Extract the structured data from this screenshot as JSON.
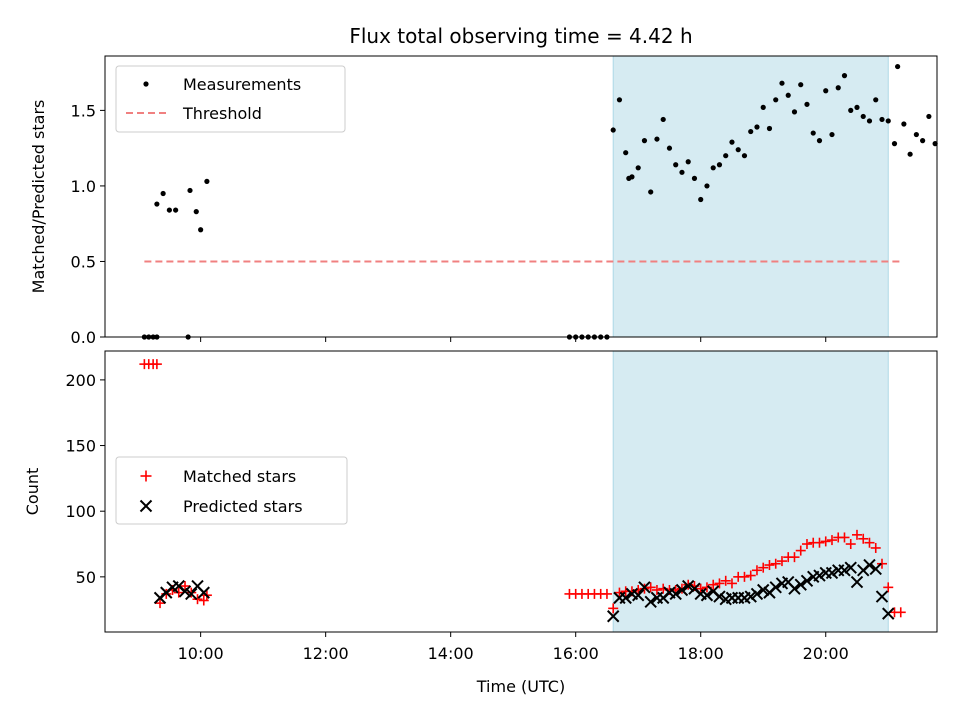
{
  "title": "Flux total observing time = 4.42 h",
  "colors": {
    "measurement": "#000000",
    "threshold": "#f08080",
    "matched": "#ff0000",
    "predicted": "#000000",
    "span": "#add8e6"
  },
  "chart_data": [
    {
      "type": "scatter",
      "panel": "top",
      "ylabel": "Matched/Predicted stars",
      "ylim": [
        0,
        1.86
      ],
      "yticks": [
        0.0,
        0.5,
        1.0,
        1.5
      ],
      "ytick_labels": [
        "0.0",
        "0.5",
        "1.0",
        "1.5"
      ],
      "xlim": [
        8.47,
        21.78
      ],
      "shaded_span": [
        16.6,
        21.0
      ],
      "legend": {
        "placement": "upper-left",
        "entries": [
          "Measurements",
          "Threshold"
        ]
      },
      "threshold": {
        "name": "Threshold",
        "x": [
          9.1,
          21.2
        ],
        "y": [
          0.5,
          0.5
        ]
      },
      "series": [
        {
          "name": "Measurements",
          "points": [
            [
              9.1,
              0.0
            ],
            [
              9.17,
              0.0
            ],
            [
              9.24,
              0.0
            ],
            [
              9.3,
              0.0
            ],
            [
              9.8,
              0.0
            ],
            [
              9.3,
              0.88
            ],
            [
              9.4,
              0.95
            ],
            [
              9.5,
              0.84
            ],
            [
              9.6,
              0.84
            ],
            [
              9.83,
              0.97
            ],
            [
              9.93,
              0.83
            ],
            [
              10.0,
              0.71
            ],
            [
              10.1,
              1.03
            ],
            [
              15.9,
              0.0
            ],
            [
              16.0,
              0.0
            ],
            [
              16.1,
              0.0
            ],
            [
              16.2,
              0.0
            ],
            [
              16.3,
              0.0
            ],
            [
              16.4,
              0.0
            ],
            [
              16.5,
              0.0
            ],
            [
              16.6,
              1.37
            ],
            [
              16.7,
              1.57
            ],
            [
              16.8,
              1.22
            ],
            [
              16.9,
              1.06
            ],
            [
              17.0,
              1.12
            ],
            [
              17.1,
              1.3
            ],
            [
              17.2,
              0.96
            ],
            [
              17.3,
              1.31
            ],
            [
              17.4,
              1.44
            ],
            [
              17.5,
              1.25
            ],
            [
              17.6,
              1.14
            ],
            [
              17.7,
              1.09
            ],
            [
              17.8,
              1.16
            ],
            [
              17.9,
              1.05
            ],
            [
              18.0,
              0.91
            ],
            [
              18.1,
              1.0
            ],
            [
              18.2,
              1.12
            ],
            [
              18.3,
              1.14
            ],
            [
              18.4,
              1.2
            ],
            [
              18.5,
              1.29
            ],
            [
              18.6,
              1.24
            ],
            [
              18.7,
              1.2
            ],
            [
              18.8,
              1.36
            ],
            [
              18.9,
              1.39
            ],
            [
              19.0,
              1.52
            ],
            [
              19.1,
              1.38
            ],
            [
              19.2,
              1.57
            ],
            [
              19.3,
              1.68
            ],
            [
              19.4,
              1.6
            ],
            [
              19.5,
              1.49
            ],
            [
              19.6,
              1.67
            ],
            [
              19.7,
              1.54
            ],
            [
              19.8,
              1.35
            ],
            [
              19.9,
              1.3
            ],
            [
              20.0,
              1.63
            ],
            [
              20.1,
              1.34
            ],
            [
              20.2,
              1.65
            ],
            [
              20.3,
              1.73
            ],
            [
              20.4,
              1.5
            ],
            [
              20.5,
              1.52
            ],
            [
              20.6,
              1.46
            ],
            [
              20.7,
              1.43
            ],
            [
              20.8,
              1.57
            ],
            [
              20.9,
              1.44
            ],
            [
              21.0,
              1.43
            ],
            [
              21.1,
              1.28
            ],
            [
              21.15,
              1.79
            ],
            [
              21.25,
              1.41
            ],
            [
              21.35,
              1.21
            ],
            [
              21.45,
              1.34
            ],
            [
              21.55,
              1.3
            ],
            [
              21.65,
              1.46
            ],
            [
              21.75,
              1.28
            ],
            [
              16.85,
              1.05
            ]
          ]
        }
      ]
    },
    {
      "type": "scatter",
      "panel": "bottom",
      "xlabel": "Time (UTC)",
      "ylabel": "Count",
      "ylim": [
        8,
        222
      ],
      "yticks": [
        50,
        100,
        150,
        200
      ],
      "ytick_labels": [
        "50",
        "100",
        "150",
        "200"
      ],
      "xlim": [
        8.47,
        21.78
      ],
      "xticks": [
        10,
        12,
        14,
        16,
        18,
        20
      ],
      "xtick_labels": [
        "10:00",
        "12:00",
        "14:00",
        "16:00",
        "18:00",
        "20:00"
      ],
      "shaded_span": [
        16.6,
        21.0
      ],
      "legend": {
        "placement": "center-left",
        "entries": [
          "Matched stars",
          "Predicted stars"
        ]
      },
      "series": [
        {
          "name": "Matched stars",
          "marker": "plus",
          "points": [
            [
              9.1,
              212
            ],
            [
              9.17,
              212
            ],
            [
              9.24,
              212
            ],
            [
              9.3,
              212
            ],
            [
              9.35,
              30
            ],
            [
              9.45,
              37
            ],
            [
              9.55,
              40
            ],
            [
              9.65,
              38
            ],
            [
              9.75,
              43
            ],
            [
              9.85,
              38
            ],
            [
              9.95,
              33
            ],
            [
              10.05,
              32
            ],
            [
              10.1,
              36
            ],
            [
              15.9,
              37
            ],
            [
              16.0,
              37
            ],
            [
              16.1,
              37
            ],
            [
              16.2,
              37
            ],
            [
              16.3,
              37
            ],
            [
              16.4,
              37
            ],
            [
              16.5,
              37
            ],
            [
              16.6,
              26
            ],
            [
              16.7,
              38
            ],
            [
              16.8,
              39
            ],
            [
              16.9,
              39
            ],
            [
              17.0,
              40
            ],
            [
              17.1,
              41
            ],
            [
              17.2,
              42
            ],
            [
              17.3,
              40
            ],
            [
              17.4,
              41
            ],
            [
              17.5,
              40
            ],
            [
              17.6,
              40
            ],
            [
              17.7,
              41
            ],
            [
              17.8,
              44
            ],
            [
              17.9,
              43
            ],
            [
              18.0,
              41
            ],
            [
              18.1,
              42
            ],
            [
              18.2,
              44
            ],
            [
              18.3,
              45
            ],
            [
              18.4,
              47
            ],
            [
              18.5,
              45
            ],
            [
              18.6,
              50
            ],
            [
              18.7,
              50
            ],
            [
              18.8,
              51
            ],
            [
              18.9,
              55
            ],
            [
              19.0,
              57
            ],
            [
              19.1,
              59
            ],
            [
              19.2,
              60
            ],
            [
              19.3,
              62
            ],
            [
              19.4,
              65
            ],
            [
              19.5,
              65
            ],
            [
              19.6,
              70
            ],
            [
              19.7,
              75
            ],
            [
              19.8,
              76
            ],
            [
              19.9,
              76
            ],
            [
              20.0,
              77
            ],
            [
              20.1,
              78
            ],
            [
              20.2,
              80
            ],
            [
              20.3,
              80
            ],
            [
              20.4,
              75
            ],
            [
              20.5,
              82
            ],
            [
              20.6,
              79
            ],
            [
              20.7,
              76
            ],
            [
              20.8,
              72
            ],
            [
              20.9,
              60
            ],
            [
              21.0,
              42
            ],
            [
              21.1,
              23
            ],
            [
              21.2,
              23
            ]
          ]
        },
        {
          "name": "Predicted stars",
          "marker": "x",
          "points": [
            [
              9.35,
              34
            ],
            [
              9.45,
              38
            ],
            [
              9.55,
              42
            ],
            [
              9.65,
              43
            ],
            [
              9.75,
              39
            ],
            [
              9.85,
              37
            ],
            [
              9.95,
              43
            ],
            [
              10.05,
              38
            ],
            [
              16.6,
              20
            ],
            [
              16.7,
              34
            ],
            [
              16.8,
              34
            ],
            [
              16.9,
              37
            ],
            [
              17.0,
              36
            ],
            [
              17.1,
              42
            ],
            [
              17.2,
              31
            ],
            [
              17.3,
              34
            ],
            [
              17.4,
              34
            ],
            [
              17.5,
              38
            ],
            [
              17.6,
              37
            ],
            [
              17.7,
              40
            ],
            [
              17.8,
              43
            ],
            [
              17.9,
              41
            ],
            [
              18.0,
              37
            ],
            [
              18.1,
              36
            ],
            [
              18.2,
              39
            ],
            [
              18.3,
              35
            ],
            [
              18.4,
              33
            ],
            [
              18.5,
              34
            ],
            [
              18.6,
              34
            ],
            [
              18.7,
              34
            ],
            [
              18.8,
              35
            ],
            [
              18.9,
              37
            ],
            [
              19.0,
              40
            ],
            [
              19.1,
              38
            ],
            [
              19.2,
              42
            ],
            [
              19.3,
              45
            ],
            [
              19.4,
              46
            ],
            [
              19.5,
              41
            ],
            [
              19.6,
              44
            ],
            [
              19.7,
              47
            ],
            [
              19.8,
              50
            ],
            [
              19.9,
              51
            ],
            [
              20.0,
              53
            ],
            [
              20.1,
              53
            ],
            [
              20.2,
              55
            ],
            [
              20.3,
              55
            ],
            [
              20.4,
              57
            ],
            [
              20.5,
              46
            ],
            [
              20.6,
              55
            ],
            [
              20.7,
              59
            ],
            [
              20.8,
              56
            ],
            [
              20.9,
              35
            ],
            [
              21.0,
              22
            ]
          ]
        }
      ]
    }
  ]
}
